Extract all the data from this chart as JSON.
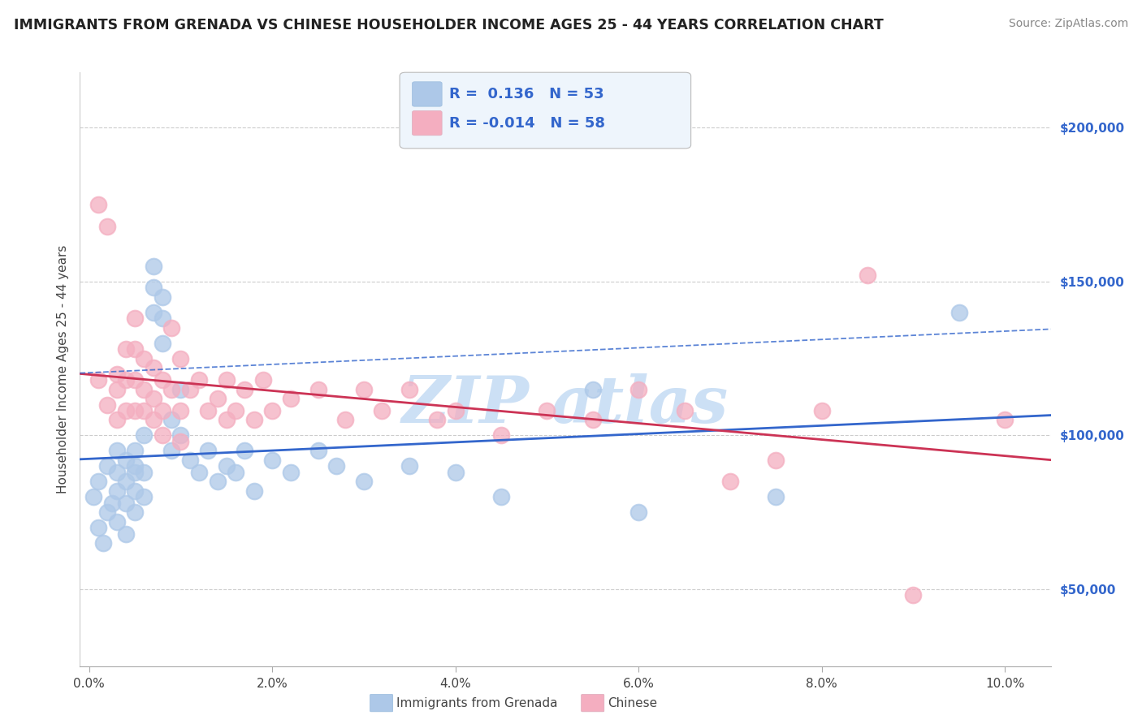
{
  "title": "IMMIGRANTS FROM GRENADA VS CHINESE HOUSEHOLDER INCOME AGES 25 - 44 YEARS CORRELATION CHART",
  "source": "Source: ZipAtlas.com",
  "ylabel": "Householder Income Ages 25 - 44 years",
  "xlabel_ticks": [
    "0.0%",
    "2.0%",
    "4.0%",
    "6.0%",
    "8.0%",
    "10.0%"
  ],
  "xlabel_vals": [
    0.0,
    0.02,
    0.04,
    0.06,
    0.08,
    0.1
  ],
  "ylabel_ticks": [
    "$50,000",
    "$100,000",
    "$150,000",
    "$200,000"
  ],
  "ylabel_vals": [
    50000,
    100000,
    150000,
    200000
  ],
  "xlim": [
    -0.001,
    0.105
  ],
  "ylim": [
    25000,
    218000
  ],
  "legend1_label": "Immigrants from Grenada",
  "legend2_label": "Chinese",
  "r1": "0.136",
  "n1": "53",
  "r2": "-0.014",
  "n2": "58",
  "color1": "#adc8e8",
  "color2": "#f4aec0",
  "line1_color": "#3366cc",
  "line2_color": "#cc3355",
  "background_color": "#ffffff",
  "watermark_color": "#cce0f5",
  "scatter1_x": [
    0.0005,
    0.001,
    0.001,
    0.0015,
    0.002,
    0.002,
    0.0025,
    0.003,
    0.003,
    0.003,
    0.003,
    0.004,
    0.004,
    0.004,
    0.004,
    0.005,
    0.005,
    0.005,
    0.005,
    0.005,
    0.006,
    0.006,
    0.006,
    0.007,
    0.007,
    0.007,
    0.008,
    0.008,
    0.008,
    0.009,
    0.009,
    0.01,
    0.01,
    0.011,
    0.012,
    0.013,
    0.014,
    0.015,
    0.016,
    0.017,
    0.018,
    0.02,
    0.022,
    0.025,
    0.027,
    0.03,
    0.035,
    0.04,
    0.045,
    0.055,
    0.06,
    0.075,
    0.095
  ],
  "scatter1_y": [
    80000,
    70000,
    85000,
    65000,
    90000,
    75000,
    78000,
    82000,
    88000,
    95000,
    72000,
    92000,
    85000,
    78000,
    68000,
    95000,
    88000,
    82000,
    75000,
    90000,
    100000,
    88000,
    80000,
    140000,
    155000,
    148000,
    145000,
    138000,
    130000,
    105000,
    95000,
    115000,
    100000,
    92000,
    88000,
    95000,
    85000,
    90000,
    88000,
    95000,
    82000,
    92000,
    88000,
    95000,
    90000,
    85000,
    90000,
    88000,
    80000,
    115000,
    75000,
    80000,
    140000
  ],
  "scatter2_x": [
    0.001,
    0.001,
    0.002,
    0.002,
    0.003,
    0.003,
    0.003,
    0.004,
    0.004,
    0.004,
    0.005,
    0.005,
    0.005,
    0.005,
    0.006,
    0.006,
    0.006,
    0.007,
    0.007,
    0.007,
    0.008,
    0.008,
    0.008,
    0.009,
    0.009,
    0.01,
    0.01,
    0.01,
    0.011,
    0.012,
    0.013,
    0.014,
    0.015,
    0.015,
    0.016,
    0.017,
    0.018,
    0.019,
    0.02,
    0.022,
    0.025,
    0.028,
    0.03,
    0.032,
    0.035,
    0.038,
    0.04,
    0.045,
    0.05,
    0.055,
    0.06,
    0.065,
    0.07,
    0.075,
    0.08,
    0.085,
    0.09,
    0.1
  ],
  "scatter2_y": [
    118000,
    175000,
    168000,
    110000,
    120000,
    115000,
    105000,
    128000,
    118000,
    108000,
    138000,
    128000,
    118000,
    108000,
    115000,
    125000,
    108000,
    122000,
    112000,
    105000,
    118000,
    108000,
    100000,
    135000,
    115000,
    125000,
    108000,
    98000,
    115000,
    118000,
    108000,
    112000,
    105000,
    118000,
    108000,
    115000,
    105000,
    118000,
    108000,
    112000,
    115000,
    105000,
    115000,
    108000,
    115000,
    105000,
    108000,
    100000,
    108000,
    105000,
    115000,
    108000,
    85000,
    92000,
    108000,
    152000,
    48000,
    105000
  ]
}
